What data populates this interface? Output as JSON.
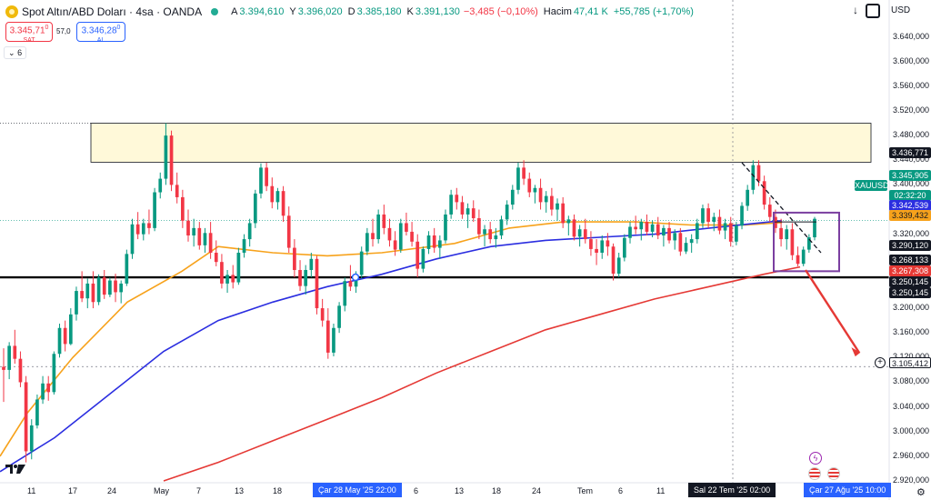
{
  "header": {
    "title": "Spot Altın/ABD Doları · 4sa · OANDA",
    "open_label": "A",
    "open": "3.394,610",
    "high_label": "Y",
    "high": "3.396,020",
    "low_label": "D",
    "low": "3.385,180",
    "close_label": "K",
    "close": "3.391,130",
    "change": "−3,485 (−0,10%)",
    "volume_label": "Hacim",
    "volume": "47,41 K",
    "volume_change": "+55,785 (+1,70%)"
  },
  "quote": {
    "sell_price": "3.345,71",
    "sell_price_sup": "0",
    "sell_label": "SAT",
    "spread": "57,0",
    "buy_price": "3.346,28",
    "buy_price_sup": "0",
    "buy_label": "AL"
  },
  "indicators_toggle": "6",
  "currency": "USD",
  "colors": {
    "up": "#089981",
    "down": "#f23645",
    "ma_orange": "#f7a21b",
    "ma_blue": "#2b2ee0",
    "ma_red": "#e53935",
    "zone_fill": "#fff9d9",
    "box_purple": "#7b3fa0",
    "arrow_red": "#e53935"
  },
  "icons": {
    "symbol": "gold-coin-icon",
    "status": "market-open-dot-icon",
    "download": "arrow-down-icon",
    "screenshot": "camera-icon",
    "add": "plus-icon",
    "settings": "gear-icon",
    "logo": "tradingview-logo-icon",
    "events": [
      "lightning-event-icon",
      "us-flag-event-icon",
      "us-flag-event-icon"
    ]
  },
  "chart_data": {
    "type": "candlestick",
    "symbol": "XAUUSD",
    "timeframe": "4sa",
    "y_ticks": [
      "3.640,000",
      "3.600,000",
      "3.560,000",
      "3.520,000",
      "3.480,000",
      "3.440,000",
      "3.400,000",
      "3.360,000",
      "3.320,000",
      "3.280,000",
      "3.240,000",
      "3.200,000",
      "3.160,000",
      "3.120,000",
      "3.080,000",
      "3.040,000",
      "3.000,000",
      "2.960,000",
      "2.920,000"
    ],
    "ylim": [
      2920,
      3660
    ],
    "x_ticks": [
      "11",
      "17",
      "24",
      "May",
      "7",
      "13",
      "18",
      "6",
      "13",
      "18",
      "24",
      "Tem",
      "6",
      "11"
    ],
    "x_highlights": [
      "Çar 28 May '25  22:00",
      "Sal 22 Tem '25  02:00",
      "Çar 27 Ağu '25  10:00"
    ],
    "price_tags": [
      {
        "label": "3.436,771",
        "value": 3436.771,
        "style": "black"
      },
      {
        "label": "XAUUSD",
        "value": 3345.905,
        "style": "green"
      },
      {
        "label": "3.345,905",
        "value": 3345.905,
        "style": "green"
      },
      {
        "label": "02:32:20",
        "value": 3345.905,
        "style": "green"
      },
      {
        "label": "3.342,539",
        "value": 3342.539,
        "style": "blue"
      },
      {
        "label": "3.339,432",
        "value": 3339.432,
        "style": "orange"
      },
      {
        "label": "3.290,120",
        "value": 3290.12,
        "style": "black"
      },
      {
        "label": "3.268,133",
        "value": 3268.133,
        "style": "black"
      },
      {
        "label": "3.267,308",
        "value": 3267.308,
        "style": "red"
      },
      {
        "label": "3.250,145",
        "value": 3250.145,
        "style": "black"
      },
      {
        "label": "3.250,145",
        "value": 3250.145,
        "style": "black"
      },
      {
        "label": "3.105,412",
        "value": 3105.412,
        "style": "white"
      }
    ],
    "key_levels": {
      "resistance_zone": [
        3436.771,
        3500
      ],
      "support_line": 3250.145,
      "crosshair_price": 3105.412
    },
    "moving_averages": [
      {
        "color": "orange",
        "points": [
          [
            0,
            2960
          ],
          [
            30,
            3030
          ],
          [
            80,
            3120
          ],
          [
            140,
            3210
          ],
          [
            200,
            3260
          ],
          [
            240,
            3300
          ],
          [
            300,
            3290
          ],
          [
            360,
            3285
          ],
          [
            420,
            3290
          ],
          [
            500,
            3305
          ],
          [
            560,
            3330
          ],
          [
            620,
            3340
          ],
          [
            700,
            3340
          ],
          [
            760,
            3335
          ],
          [
            820,
            3335
          ],
          [
            860,
            3339
          ]
        ]
      },
      {
        "color": "blue",
        "points": [
          [
            0,
            2935
          ],
          [
            60,
            2990
          ],
          [
            120,
            3060
          ],
          [
            180,
            3130
          ],
          [
            240,
            3180
          ],
          [
            300,
            3210
          ],
          [
            360,
            3235
          ],
          [
            420,
            3255
          ],
          [
            480,
            3280
          ],
          [
            540,
            3300
          ],
          [
            600,
            3310
          ],
          [
            660,
            3315
          ],
          [
            720,
            3320
          ],
          [
            780,
            3330
          ],
          [
            860,
            3342
          ]
        ]
      },
      {
        "color": "red",
        "points": [
          [
            180,
            2920
          ],
          [
            240,
            2950
          ],
          [
            300,
            2985
          ],
          [
            360,
            3020
          ],
          [
            420,
            3055
          ],
          [
            480,
            3095
          ],
          [
            540,
            3130
          ],
          [
            600,
            3165
          ],
          [
            660,
            3190
          ],
          [
            720,
            3215
          ],
          [
            780,
            3235
          ],
          [
            840,
            3255
          ],
          [
            880,
            3267
          ]
        ]
      }
    ],
    "candles": [
      [
        3105,
        3135,
        3048,
        3100
      ],
      [
        3100,
        3145,
        3085,
        3139
      ],
      [
        3139,
        3165,
        3110,
        3118
      ],
      [
        3118,
        3130,
        3072,
        3080
      ],
      [
        3080,
        3090,
        2950,
        2968
      ],
      [
        2968,
        3020,
        2955,
        3010
      ],
      [
        3010,
        3060,
        3005,
        3052
      ],
      [
        3052,
        3090,
        3045,
        3078
      ],
      [
        3078,
        3090,
        3050,
        3064
      ],
      [
        3064,
        3130,
        3060,
        3126
      ],
      [
        3126,
        3175,
        3120,
        3168
      ],
      [
        3168,
        3180,
        3130,
        3142
      ],
      [
        3142,
        3200,
        3140,
        3190
      ],
      [
        3190,
        3235,
        3180,
        3228
      ],
      [
        3228,
        3260,
        3210,
        3216
      ],
      [
        3216,
        3248,
        3200,
        3240
      ],
      [
        3240,
        3260,
        3200,
        3210
      ],
      [
        3210,
        3255,
        3205,
        3250
      ],
      [
        3250,
        3262,
        3215,
        3222
      ],
      [
        3222,
        3250,
        3218,
        3245
      ],
      [
        3245,
        3256,
        3210,
        3226
      ],
      [
        3226,
        3245,
        3208,
        3240
      ],
      [
        3240,
        3295,
        3236,
        3288
      ],
      [
        3288,
        3345,
        3280,
        3336
      ],
      [
        3336,
        3356,
        3312,
        3320
      ],
      [
        3320,
        3345,
        3310,
        3338
      ],
      [
        3338,
        3360,
        3320,
        3330
      ],
      [
        3330,
        3395,
        3325,
        3388
      ],
      [
        3388,
        3420,
        3378,
        3410
      ],
      [
        3410,
        3500,
        3400,
        3480
      ],
      [
        3480,
        3488,
        3390,
        3400
      ],
      [
        3400,
        3420,
        3370,
        3380
      ],
      [
        3380,
        3392,
        3330,
        3342
      ],
      [
        3342,
        3360,
        3308,
        3318
      ],
      [
        3318,
        3345,
        3300,
        3330
      ],
      [
        3330,
        3340,
        3295,
        3302
      ],
      [
        3302,
        3330,
        3290,
        3322
      ],
      [
        3322,
        3340,
        3280,
        3290
      ],
      [
        3290,
        3310,
        3268,
        3275
      ],
      [
        3275,
        3288,
        3232,
        3240
      ],
      [
        3240,
        3262,
        3225,
        3254
      ],
      [
        3254,
        3270,
        3232,
        3242
      ],
      [
        3242,
        3298,
        3238,
        3290
      ],
      [
        3290,
        3320,
        3282,
        3312
      ],
      [
        3312,
        3345,
        3300,
        3338
      ],
      [
        3338,
        3392,
        3330,
        3386
      ],
      [
        3386,
        3435,
        3378,
        3428
      ],
      [
        3428,
        3436,
        3390,
        3398
      ],
      [
        3398,
        3412,
        3362,
        3372
      ],
      [
        3372,
        3395,
        3360,
        3390
      ],
      [
        3390,
        3398,
        3340,
        3350
      ],
      [
        3350,
        3365,
        3290,
        3298
      ],
      [
        3298,
        3312,
        3250,
        3262
      ],
      [
        3262,
        3278,
        3228,
        3236
      ],
      [
        3236,
        3270,
        3222,
        3262
      ],
      [
        3262,
        3290,
        3250,
        3280
      ],
      [
        3280,
        3285,
        3190,
        3200
      ],
      [
        3200,
        3215,
        3170,
        3180
      ],
      [
        3180,
        3200,
        3118,
        3128
      ],
      [
        3128,
        3175,
        3122,
        3168
      ],
      [
        3168,
        3210,
        3160,
        3204
      ],
      [
        3204,
        3250,
        3195,
        3244
      ],
      [
        3244,
        3270,
        3228,
        3235
      ],
      [
        3235,
        3260,
        3225,
        3254
      ],
      [
        3254,
        3300,
        3248,
        3292
      ],
      [
        3292,
        3330,
        3286,
        3322
      ],
      [
        3322,
        3345,
        3300,
        3312
      ],
      [
        3312,
        3360,
        3305,
        3352
      ],
      [
        3352,
        3368,
        3320,
        3330
      ],
      [
        3330,
        3345,
        3300,
        3310
      ],
      [
        3310,
        3325,
        3285,
        3295
      ],
      [
        3295,
        3345,
        3290,
        3338
      ],
      [
        3338,
        3355,
        3318,
        3324
      ],
      [
        3324,
        3340,
        3300,
        3308
      ],
      [
        3308,
        3320,
        3250,
        3264
      ],
      [
        3264,
        3300,
        3258,
        3296
      ],
      [
        3296,
        3325,
        3288,
        3318
      ],
      [
        3318,
        3330,
        3290,
        3298
      ],
      [
        3298,
        3318,
        3280,
        3310
      ],
      [
        3310,
        3360,
        3305,
        3352
      ],
      [
        3352,
        3392,
        3345,
        3384
      ],
      [
        3384,
        3395,
        3360,
        3372
      ],
      [
        3372,
        3382,
        3345,
        3352
      ],
      [
        3352,
        3370,
        3330,
        3362
      ],
      [
        3362,
        3375,
        3340,
        3346
      ],
      [
        3346,
        3360,
        3312,
        3320
      ],
      [
        3320,
        3335,
        3300,
        3328
      ],
      [
        3328,
        3340,
        3305,
        3312
      ],
      [
        3312,
        3330,
        3298,
        3318
      ],
      [
        3318,
        3350,
        3312,
        3344
      ],
      [
        3344,
        3375,
        3335,
        3368
      ],
      [
        3368,
        3400,
        3360,
        3392
      ],
      [
        3392,
        3436,
        3385,
        3428
      ],
      [
        3428,
        3440,
        3400,
        3410
      ],
      [
        3410,
        3420,
        3380,
        3388
      ],
      [
        3388,
        3400,
        3370,
        3395
      ],
      [
        3395,
        3410,
        3360,
        3372
      ],
      [
        3372,
        3390,
        3355,
        3382
      ],
      [
        3382,
        3395,
        3350,
        3360
      ],
      [
        3360,
        3378,
        3342,
        3370
      ],
      [
        3370,
        3380,
        3330,
        3338
      ],
      [
        3338,
        3350,
        3318,
        3344
      ],
      [
        3344,
        3352,
        3310,
        3316
      ],
      [
        3316,
        3335,
        3300,
        3328
      ],
      [
        3328,
        3345,
        3305,
        3312
      ],
      [
        3312,
        3325,
        3285,
        3296
      ],
      [
        3296,
        3312,
        3270,
        3290
      ],
      [
        3290,
        3318,
        3280,
        3310
      ],
      [
        3310,
        3322,
        3285,
        3300
      ],
      [
        3300,
        3305,
        3245,
        3256
      ],
      [
        3256,
        3290,
        3250,
        3282
      ],
      [
        3282,
        3320,
        3276,
        3314
      ],
      [
        3314,
        3340,
        3305,
        3332
      ],
      [
        3332,
        3350,
        3320,
        3328
      ],
      [
        3328,
        3345,
        3310,
        3340
      ],
      [
        3340,
        3352,
        3318,
        3324
      ],
      [
        3324,
        3342,
        3315,
        3336
      ],
      [
        3336,
        3348,
        3312,
        3318
      ],
      [
        3318,
        3335,
        3300,
        3330
      ],
      [
        3330,
        3340,
        3305,
        3310
      ],
      [
        3310,
        3328,
        3295,
        3322
      ],
      [
        3322,
        3330,
        3285,
        3292
      ],
      [
        3292,
        3315,
        3288,
        3306
      ],
      [
        3306,
        3320,
        3290,
        3312
      ],
      [
        3312,
        3345,
        3305,
        3338
      ],
      [
        3338,
        3368,
        3330,
        3362
      ],
      [
        3362,
        3370,
        3330,
        3340
      ],
      [
        3340,
        3355,
        3325,
        3348
      ],
      [
        3348,
        3360,
        3320,
        3326
      ],
      [
        3326,
        3345,
        3312,
        3338
      ],
      [
        3338,
        3348,
        3300,
        3308
      ],
      [
        3308,
        3340,
        3302,
        3334
      ],
      [
        3334,
        3372,
        3328,
        3366
      ],
      [
        3366,
        3400,
        3358,
        3392
      ],
      [
        3392,
        3440,
        3385,
        3432
      ],
      [
        3432,
        3440,
        3398,
        3406
      ],
      [
        3406,
        3415,
        3360,
        3368
      ],
      [
        3368,
        3380,
        3340,
        3348
      ],
      [
        3348,
        3360,
        3322,
        3330
      ],
      [
        3330,
        3345,
        3300,
        3312
      ],
      [
        3312,
        3335,
        3295,
        3328
      ],
      [
        3328,
        3338,
        3278,
        3286
      ],
      [
        3286,
        3300,
        3268,
        3272
      ],
      [
        3272,
        3300,
        3268,
        3295
      ],
      [
        3295,
        3320,
        3290,
        3315
      ],
      [
        3315,
        3348,
        3310,
        3345
      ]
    ],
    "title": "Spot Altın/ABD Doları · 4sa · OANDA",
    "grid": false,
    "legend": "top-left"
  }
}
